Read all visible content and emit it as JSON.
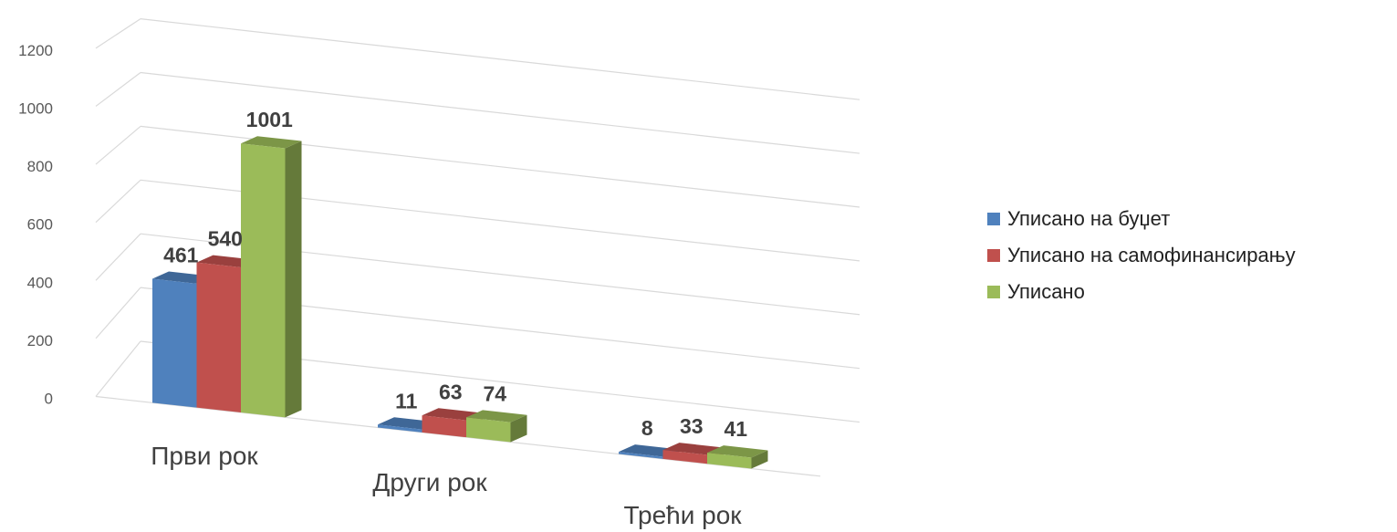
{
  "chart_data": {
    "type": "bar",
    "title": "",
    "categories": [
      "Први рок",
      "Други рок",
      "Трећи рок"
    ],
    "series": [
      {
        "name": "Уписано на буџет",
        "color": "#4F81BD",
        "values": [
          461,
          11,
          8
        ]
      },
      {
        "name": "Уписано на самофинансирању",
        "color": "#C0504D",
        "values": [
          540,
          63,
          33
        ]
      },
      {
        "name": "Уписано",
        "color": "#9BBB59",
        "values": [
          1001,
          74,
          41
        ]
      }
    ],
    "data_labels": [
      [
        "461",
        "540",
        "1001"
      ],
      [
        "11",
        "63",
        "74"
      ],
      [
        "8",
        "33",
        "41"
      ]
    ],
    "y_ticks": [
      "0",
      "200",
      "400",
      "600",
      "800",
      "1000",
      "1200"
    ],
    "ylim": [
      0,
      1200
    ],
    "xlabel": "",
    "ylabel": "",
    "grid": true,
    "legend_position": "right",
    "style": "3d-clustered-column"
  }
}
